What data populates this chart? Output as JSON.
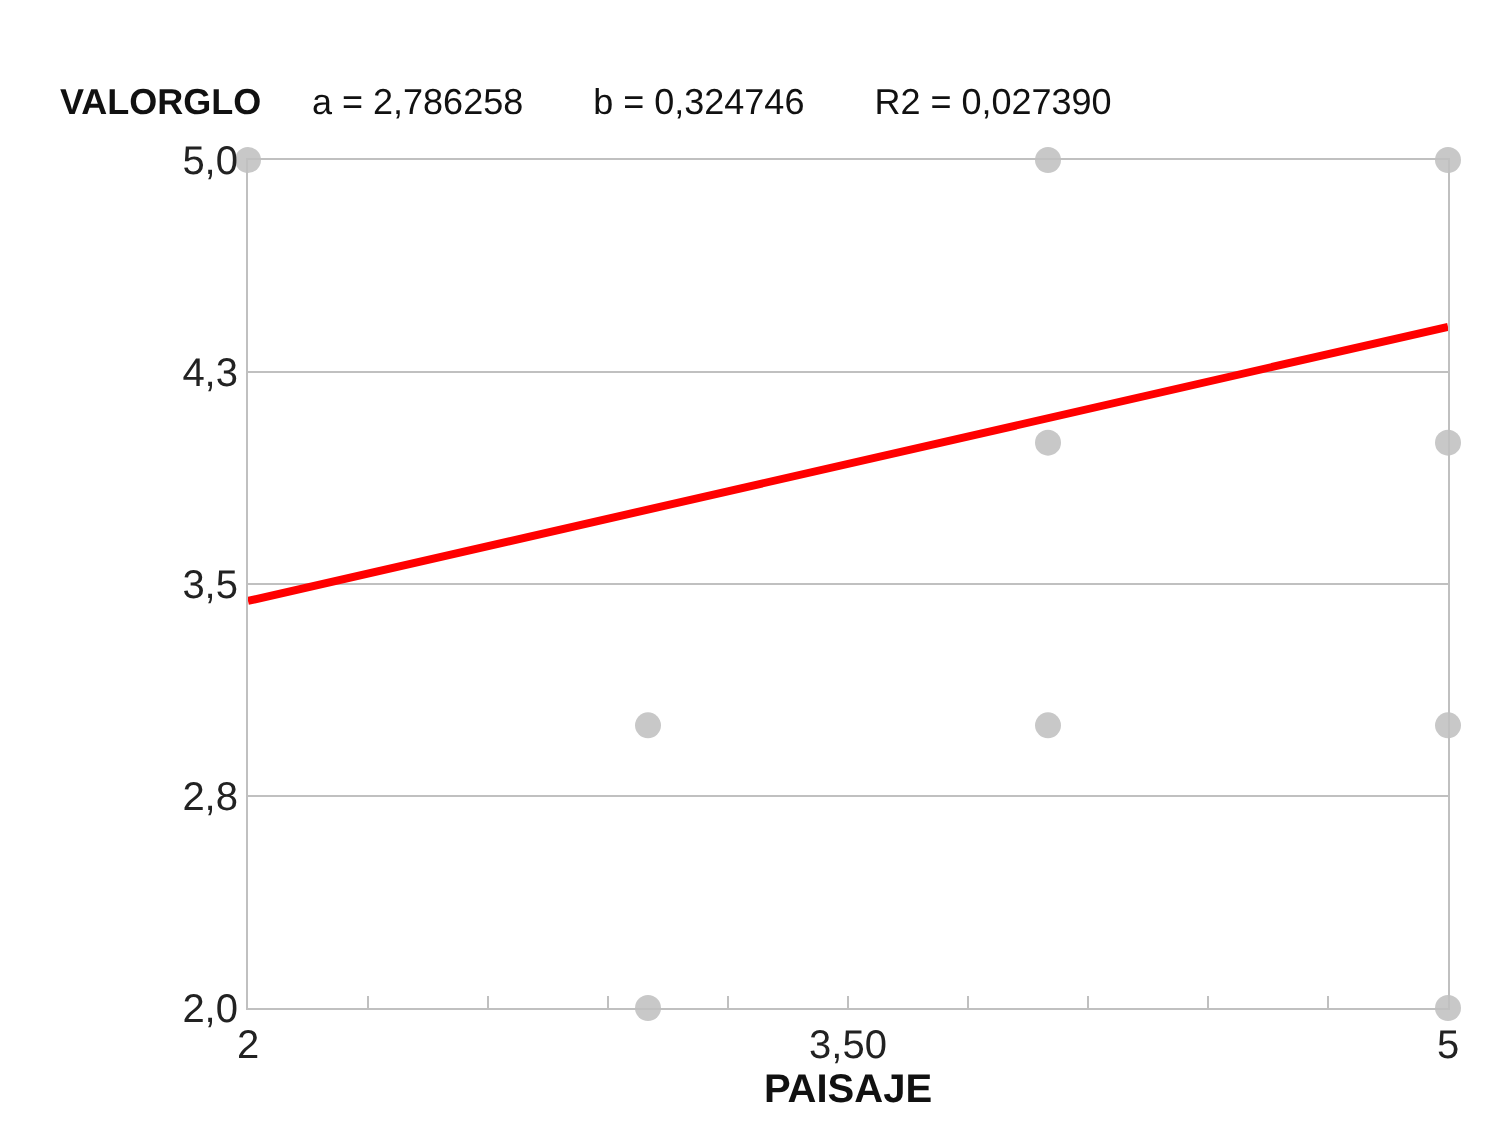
{
  "chart_data": {
    "type": "scatter",
    "title": "a = 2,786258       b = 0,324746       R2 = 0,027390",
    "ylabel": "VALORGLO",
    "xlabel": "PAISAJE",
    "series": [
      {
        "color": "#c8c8c8",
        "marker": "circle",
        "x": [
          2,
          3,
          3,
          4,
          4,
          4,
          5,
          5,
          5,
          5
        ],
        "values": [
          5,
          3,
          2,
          5,
          4,
          3,
          5,
          4,
          3,
          2
        ]
      },
      {
        "type": "line",
        "color": "#ff0000",
        "line_style": "solid",
        "x": [
          2,
          5
        ],
        "values": [
          3.44,
          4.41
        ]
      }
    ],
    "xlim": [
      2,
      5
    ],
    "xticks": [
      2,
      {
        "value": 2.3,
        "label": null
      },
      {
        "value": 2.6,
        "label": null
      },
      {
        "value": 2.9,
        "label": null
      },
      {
        "value": 3.2,
        "label": null
      },
      {
        "value": 3.5,
        "label": "3,50"
      },
      {
        "value": 3.8,
        "label": null
      },
      {
        "value": 4.1,
        "label": null
      },
      {
        "value": 4.4,
        "label": null
      },
      {
        "value": 4.7,
        "label": null
      },
      5
    ],
    "ylim": [
      2,
      5
    ],
    "yticks": [
      {
        "value": 2,
        "label": "2,0"
      },
      {
        "value": 2.75,
        "label": "2,8"
      },
      {
        "value": 3.5,
        "label": "3,5"
      },
      {
        "value": 4.25,
        "label": "4,3"
      },
      {
        "value": 5,
        "label": "5,0"
      }
    ],
    "grid": "y",
    "legend": false
  }
}
